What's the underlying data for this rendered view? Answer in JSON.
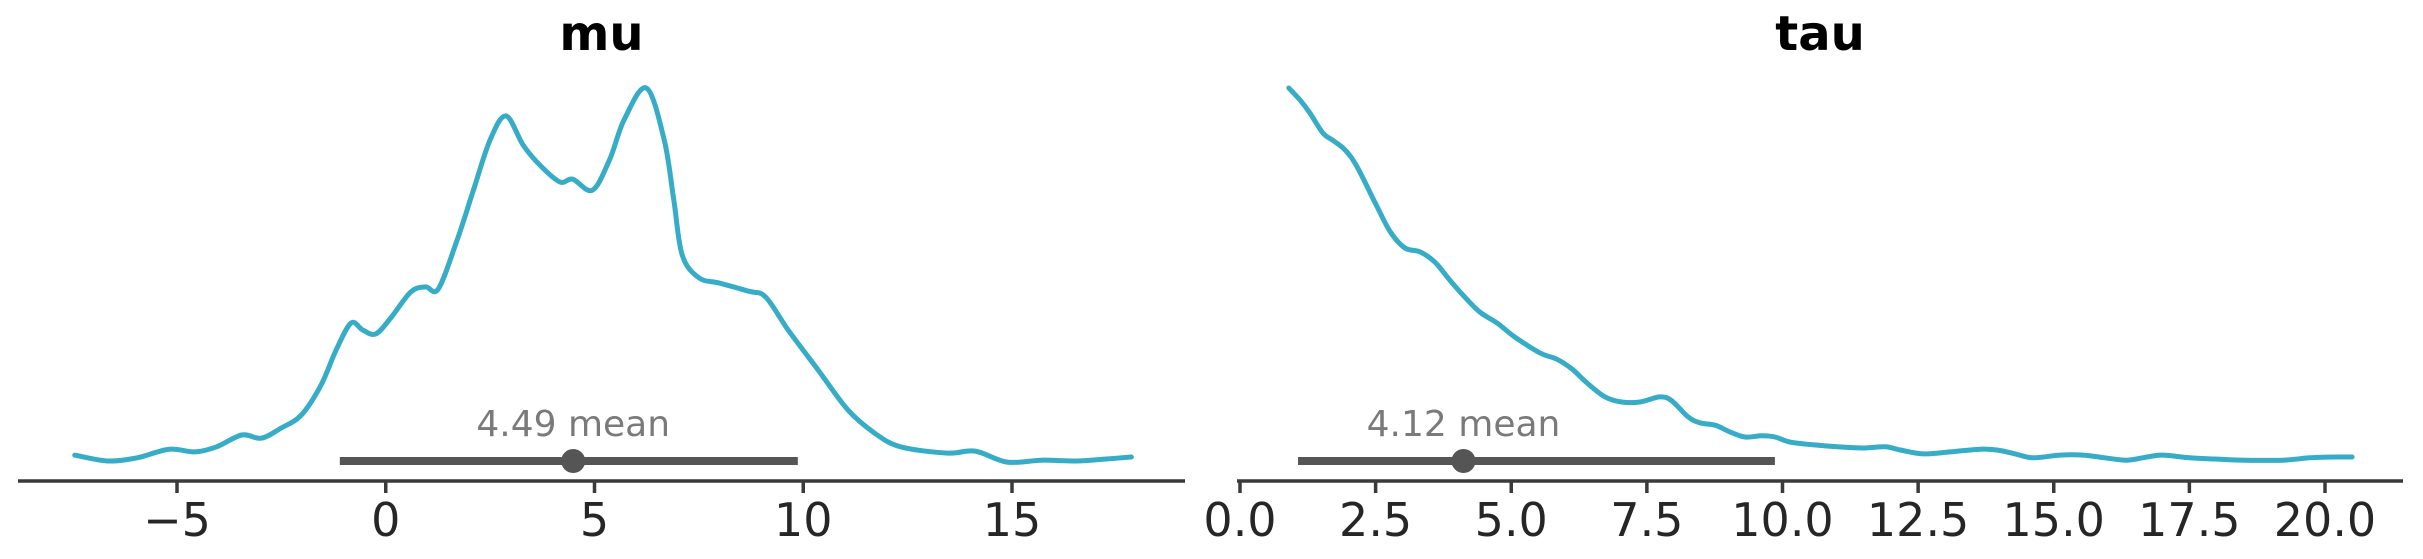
{
  "figure": {
    "background": "#ffffff",
    "description": "Two posterior KDE density plots side by side with HDI interval bars and mean markers"
  },
  "style": {
    "curve_color": "#36acc6",
    "hdi_color": "#555555",
    "mean_text_color": "#7a7a7a",
    "tick_label_color": "#262626",
    "axis_color": "#3a3a3a",
    "title_color": "#000000"
  },
  "chart_data": [
    {
      "type": "line",
      "kind": "kde-density",
      "title": "mu",
      "legend_position": "none",
      "grid": false,
      "xlim": [
        -8.8,
        19.1
      ],
      "ylim": [
        0,
        1.05
      ],
      "xticks": [
        -5,
        0,
        5,
        10,
        15
      ],
      "xtick_labels": [
        "−5",
        "0",
        "5",
        "10",
        "15"
      ],
      "x": [
        -7.45,
        -6.67,
        -5.95,
        -5.19,
        -4.57,
        -4.05,
        -3.45,
        -2.98,
        -2.5,
        -2.02,
        -1.55,
        -1.19,
        -0.83,
        -0.55,
        -0.24,
        0.12,
        0.6,
        0.95,
        1.26,
        1.71,
        2.1,
        2.5,
        2.88,
        3.29,
        3.69,
        4.17,
        4.48,
        4.95,
        5.36,
        5.71,
        6.24,
        6.67,
        6.9,
        7.1,
        7.5,
        7.98,
        8.69,
        9.1,
        9.64,
        10.36,
        11.07,
        11.71,
        12.33,
        13.45,
        14.12,
        14.88,
        15.71,
        16.55,
        17.26,
        17.86
      ],
      "density": [
        0.066,
        0.051,
        0.059,
        0.081,
        0.074,
        0.087,
        0.117,
        0.109,
        0.135,
        0.168,
        0.244,
        0.333,
        0.402,
        0.384,
        0.374,
        0.415,
        0.481,
        0.494,
        0.489,
        0.613,
        0.74,
        0.868,
        0.929,
        0.855,
        0.804,
        0.761,
        0.768,
        0.74,
        0.817,
        0.919,
        1.0,
        0.868,
        0.715,
        0.575,
        0.517,
        0.504,
        0.483,
        0.468,
        0.384,
        0.282,
        0.181,
        0.122,
        0.087,
        0.071,
        0.076,
        0.048,
        0.053,
        0.051,
        0.056,
        0.061
      ],
      "mean": 4.49,
      "mean_label": "4.49 mean",
      "hdi_low": -1.1,
      "hdi_high": 9.87
    },
    {
      "type": "line",
      "kind": "kde-density",
      "title": "tau",
      "legend_position": "none",
      "grid": false,
      "xlim": [
        -0.06,
        21.45
      ],
      "ylim": [
        0,
        1.05
      ],
      "xticks": [
        0.0,
        2.5,
        5.0,
        7.5,
        10.0,
        12.5,
        15.0,
        17.5,
        20.0
      ],
      "xtick_labels": [
        "0.0",
        "2.5",
        "5.0",
        "7.5",
        "10.0",
        "12.5",
        "15.0",
        "17.5",
        "20.0"
      ],
      "x": [
        0.9,
        1.11,
        1.29,
        1.53,
        1.7,
        1.94,
        2.16,
        2.53,
        2.77,
        3.04,
        3.32,
        3.59,
        3.87,
        4.11,
        4.42,
        4.74,
        5.07,
        5.53,
        5.84,
        6.12,
        6.4,
        6.73,
        7.04,
        7.37,
        7.74,
        7.96,
        8.26,
        8.48,
        8.76,
        9.03,
        9.31,
        9.62,
        9.86,
        10.14,
        10.56,
        11.02,
        11.47,
        11.89,
        12.17,
        12.59,
        13.09,
        13.64,
        13.95,
        14.29,
        14.62,
        15.12,
        15.54,
        15.94,
        16.35,
        16.72,
        17.01,
        17.51,
        17.97,
        18.53,
        19.23,
        19.72,
        20.15,
        20.5
      ],
      "density": [
        1.0,
        0.969,
        0.936,
        0.885,
        0.868,
        0.842,
        0.799,
        0.697,
        0.634,
        0.593,
        0.583,
        0.557,
        0.511,
        0.473,
        0.43,
        0.402,
        0.366,
        0.326,
        0.31,
        0.285,
        0.249,
        0.214,
        0.201,
        0.201,
        0.214,
        0.204,
        0.163,
        0.148,
        0.142,
        0.125,
        0.112,
        0.115,
        0.112,
        0.099,
        0.092,
        0.087,
        0.084,
        0.087,
        0.079,
        0.069,
        0.074,
        0.081,
        0.079,
        0.069,
        0.059,
        0.066,
        0.066,
        0.059,
        0.053,
        0.061,
        0.066,
        0.059,
        0.056,
        0.053,
        0.053,
        0.059,
        0.061,
        0.061
      ],
      "mean": 4.12,
      "mean_label": "4.12 mean",
      "hdi_low": 1.07,
      "hdi_high": 9.86
    }
  ]
}
